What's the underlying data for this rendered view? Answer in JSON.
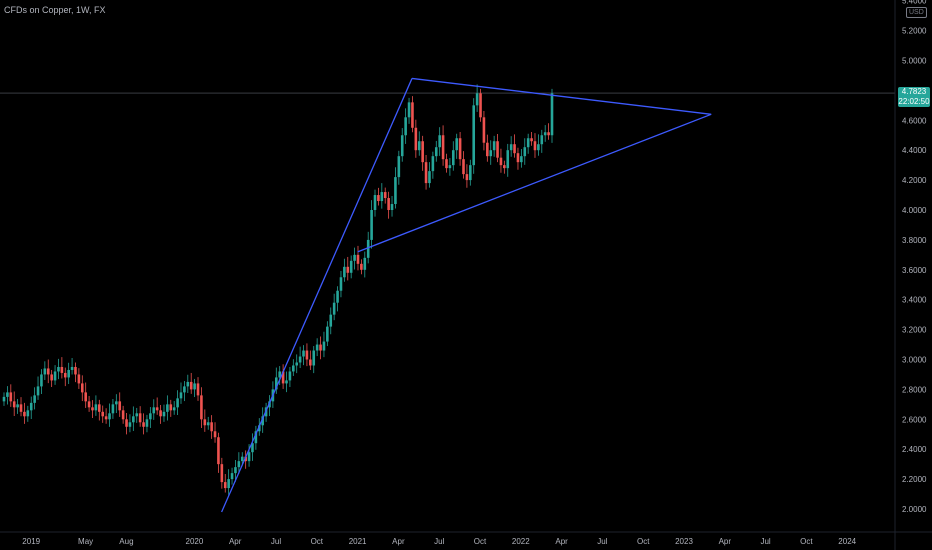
{
  "header": {
    "symbol_title": "CFDs on Copper, 1W, FX",
    "currency": "USD"
  },
  "price_tag": {
    "price": "4.7823",
    "countdown": "22:02:50"
  },
  "colors": {
    "up": "#26a69a",
    "down": "#ef5350",
    "trendline": "#3d5afe",
    "background": "#000000",
    "axis_text": "#b2b5be"
  },
  "chart_data": {
    "type": "candlestick",
    "title": "CFDs on Copper, 1W, FX",
    "ylim": [
      1.9,
      5.4
    ],
    "yticks": [
      2.0,
      2.2,
      2.4,
      2.6,
      2.8,
      3.0,
      3.2,
      3.4,
      3.6,
      3.8,
      4.0,
      4.2,
      4.4,
      4.6,
      4.8,
      5.0,
      5.2,
      5.4
    ],
    "ytick_labels": [
      "2.0000",
      "2.2000",
      "2.4000",
      "2.6000",
      "2.8000",
      "3.0000",
      "3.2000",
      "3.4000",
      "3.6000",
      "3.8000",
      "4.0000",
      "4.2000",
      "4.4000",
      "4.6000",
      "4.8000",
      "5.0000",
      "5.2000",
      "5.4000"
    ],
    "xtick_labels": [
      "2019",
      "May",
      "Aug",
      "2020",
      "Apr",
      "Jul",
      "Oct",
      "2021",
      "Apr",
      "Jul",
      "Oct",
      "2022",
      "Apr",
      "Jul",
      "Oct",
      "2023",
      "Apr",
      "Jul",
      "Oct",
      "2024"
    ],
    "xtick_dates": [
      "2019-01",
      "2019-05",
      "2019-08",
      "2020-01",
      "2020-04",
      "2020-07",
      "2020-10",
      "2021-01",
      "2021-04",
      "2021-07",
      "2021-10",
      "2022-01",
      "2022-04",
      "2022-07",
      "2022-10",
      "2023-01",
      "2023-04",
      "2023-07",
      "2023-10",
      "2024-01"
    ],
    "x_start": "2018-11",
    "last_price": 4.7823,
    "close_series": [
      2.75,
      2.78,
      2.72,
      2.68,
      2.7,
      2.65,
      2.62,
      2.66,
      2.71,
      2.76,
      2.82,
      2.9,
      2.94,
      2.9,
      2.86,
      2.92,
      2.95,
      2.91,
      2.88,
      2.93,
      2.95,
      2.9,
      2.84,
      2.78,
      2.72,
      2.68,
      2.66,
      2.7,
      2.65,
      2.62,
      2.6,
      2.64,
      2.7,
      2.72,
      2.66,
      2.6,
      2.55,
      2.58,
      2.62,
      2.64,
      2.58,
      2.55,
      2.6,
      2.64,
      2.68,
      2.66,
      2.62,
      2.65,
      2.7,
      2.66,
      2.68,
      2.74,
      2.78,
      2.82,
      2.85,
      2.8,
      2.84,
      2.76,
      2.6,
      2.56,
      2.58,
      2.52,
      2.48,
      2.3,
      2.18,
      2.14,
      2.2,
      2.24,
      2.28,
      2.32,
      2.35,
      2.32,
      2.38,
      2.44,
      2.52,
      2.56,
      2.62,
      2.68,
      2.72,
      2.8,
      2.88,
      2.92,
      2.84,
      2.86,
      2.92,
      2.96,
      2.98,
      3.02,
      3.06,
      3.0,
      2.96,
      3.06,
      3.1,
      3.06,
      3.12,
      3.22,
      3.3,
      3.38,
      3.46,
      3.55,
      3.62,
      3.58,
      3.66,
      3.7,
      3.64,
      3.6,
      3.68,
      3.8,
      4.0,
      4.1,
      4.06,
      4.12,
      4.08,
      4.0,
      4.04,
      4.22,
      4.36,
      4.5,
      4.62,
      4.72,
      4.55,
      4.4,
      4.46,
      4.32,
      4.18,
      4.26,
      4.36,
      4.42,
      4.5,
      4.34,
      4.28,
      4.3,
      4.4,
      4.48,
      4.34,
      4.24,
      4.2,
      4.3,
      4.7,
      4.78,
      4.62,
      4.45,
      4.36,
      4.4,
      4.46,
      4.35,
      4.3,
      4.28,
      4.4,
      4.44,
      4.38,
      4.32,
      4.36,
      4.42,
      4.48,
      4.46,
      4.4,
      4.44,
      4.5,
      4.52,
      4.5,
      4.78
    ],
    "trendlines": [
      {
        "from": [
          "2020-03",
          1.98
        ],
        "to": [
          "2021-05",
          4.88
        ]
      },
      {
        "from": [
          "2021-05",
          4.88
        ],
        "to": [
          "2023-03",
          4.64
        ]
      },
      {
        "from": [
          "2021-01",
          3.72
        ],
        "to": [
          "2023-03",
          4.64
        ]
      }
    ]
  }
}
